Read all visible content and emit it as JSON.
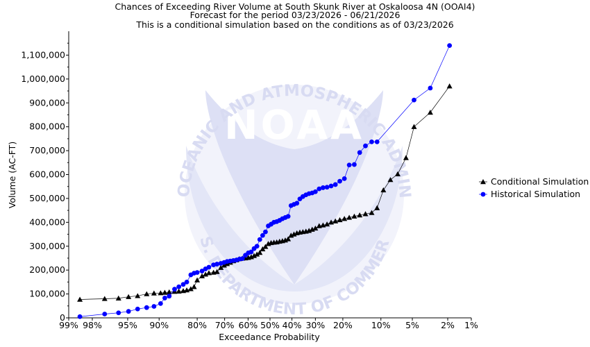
{
  "chart_data": {
    "type": "scatter",
    "title": "Chances of Exceeding River Volume at South Skunk River at Oskaloosa 4N (OOAI4)",
    "subtitle_lines": [
      "Forecast for the period 03/23/2026 - 06/21/2026",
      "This is a conditional simulation based on the conditions as of 03/23/2026"
    ],
    "xlabel": "Exceedance Probability",
    "ylabel": "Volume (AC-FT)",
    "x_axis_scale": "normal-probability",
    "x_axis_direction": "descending",
    "x_ticks": [
      99,
      98,
      95,
      90,
      80,
      70,
      60,
      50,
      40,
      30,
      20,
      10,
      5,
      2,
      1
    ],
    "x_tick_labels": [
      "99%",
      "98%",
      "95%",
      "90%",
      "80%",
      "70%",
      "60%",
      "50%",
      "40%",
      "30%",
      "20%",
      "10%",
      "5%",
      "2%",
      "1%"
    ],
    "y_ticks": [
      0,
      100000,
      200000,
      300000,
      400000,
      500000,
      600000,
      700000,
      800000,
      900000,
      1000000,
      1100000
    ],
    "y_tick_labels": [
      "0",
      "100,000",
      "200,000",
      "300,000",
      "400,000",
      "500,000",
      "600,000",
      "700,000",
      "800,000",
      "900,000",
      "1,000,000",
      "1,100,000"
    ],
    "ylim": [
      0,
      1200000
    ],
    "grid": false,
    "legend_position": "right",
    "watermark_text": [
      "NATIONAL OCEANIC AND ATMOSPHERIC ADMINISTRATION",
      "NOAA",
      "U.S. DEPARTMENT OF COMMERCE"
    ],
    "series": [
      {
        "name": "Conditional Simulation",
        "marker": "triangle",
        "color": "#000000",
        "points": [
          [
            98.6,
            77000
          ],
          [
            97.2,
            80000
          ],
          [
            96.0,
            82000
          ],
          [
            94.9,
            88000
          ],
          [
            93.7,
            92000
          ],
          [
            92.3,
            100000
          ],
          [
            91.0,
            103000
          ],
          [
            89.7,
            104000
          ],
          [
            88.8,
            106000
          ],
          [
            87.8,
            108000
          ],
          [
            86.5,
            110000
          ],
          [
            85.4,
            111000
          ],
          [
            84.2,
            113000
          ],
          [
            83.2,
            116000
          ],
          [
            82.0,
            121000
          ],
          [
            81.0,
            130000
          ],
          [
            80.0,
            158000
          ],
          [
            78.4,
            175000
          ],
          [
            77.2,
            182000
          ],
          [
            76.0,
            188000
          ],
          [
            74.3,
            190000
          ],
          [
            73.0,
            193000
          ],
          [
            71.5,
            210000
          ],
          [
            70.2,
            220000
          ],
          [
            69.0,
            226000
          ],
          [
            67.7,
            232000
          ],
          [
            66.4,
            238000
          ],
          [
            65.1,
            242000
          ],
          [
            63.8,
            247000
          ],
          [
            62.5,
            249000
          ],
          [
            61.2,
            250000
          ],
          [
            59.9,
            252000
          ],
          [
            58.6,
            255000
          ],
          [
            57.3,
            260000
          ],
          [
            56.0,
            266000
          ],
          [
            54.7,
            273000
          ],
          [
            53.4,
            288000
          ],
          [
            52.1,
            298000
          ],
          [
            50.8,
            310000
          ],
          [
            49.5,
            314000
          ],
          [
            48.2,
            316000
          ],
          [
            46.9,
            317000
          ],
          [
            45.6,
            320000
          ],
          [
            44.3,
            322000
          ],
          [
            43.0,
            325000
          ],
          [
            41.7,
            330000
          ],
          [
            40.4,
            345000
          ],
          [
            39.1,
            350000
          ],
          [
            37.8,
            355000
          ],
          [
            36.5,
            358000
          ],
          [
            35.2,
            360000
          ],
          [
            33.9,
            362000
          ],
          [
            32.6,
            365000
          ],
          [
            31.3,
            370000
          ],
          [
            30.0,
            375000
          ],
          [
            28.5,
            385000
          ],
          [
            27.0,
            388000
          ],
          [
            25.5,
            392000
          ],
          [
            24.0,
            400000
          ],
          [
            22.5,
            405000
          ],
          [
            21.0,
            410000
          ],
          [
            19.5,
            415000
          ],
          [
            18.0,
            420000
          ],
          [
            16.5,
            425000
          ],
          [
            15.0,
            430000
          ],
          [
            13.5,
            435000
          ],
          [
            12.0,
            440000
          ],
          [
            10.8,
            460000
          ],
          [
            9.5,
            535000
          ],
          [
            8.2,
            578000
          ],
          [
            7.0,
            602000
          ],
          [
            5.8,
            670000
          ],
          [
            4.8,
            800000
          ],
          [
            3.2,
            860000
          ],
          [
            1.9,
            970000
          ]
        ]
      },
      {
        "name": "Historical Simulation",
        "marker": "circle",
        "color": "#0000ff",
        "points": [
          [
            98.6,
            5000
          ],
          [
            97.2,
            16000
          ],
          [
            96.0,
            21000
          ],
          [
            94.9,
            27000
          ],
          [
            93.7,
            37000
          ],
          [
            92.3,
            43000
          ],
          [
            91.0,
            48000
          ],
          [
            89.7,
            60000
          ],
          [
            88.8,
            83000
          ],
          [
            87.8,
            91000
          ],
          [
            86.5,
            120000
          ],
          [
            85.4,
            130000
          ],
          [
            84.2,
            140000
          ],
          [
            83.2,
            150000
          ],
          [
            82.0,
            180000
          ],
          [
            81.0,
            187000
          ],
          [
            80.0,
            190000
          ],
          [
            78.4,
            196000
          ],
          [
            77.2,
            205000
          ],
          [
            76.0,
            212000
          ],
          [
            74.3,
            222000
          ],
          [
            73.0,
            225000
          ],
          [
            71.5,
            228000
          ],
          [
            70.2,
            232000
          ],
          [
            69.0,
            236000
          ],
          [
            67.7,
            238000
          ],
          [
            66.4,
            240000
          ],
          [
            65.1,
            242000
          ],
          [
            63.8,
            246000
          ],
          [
            62.5,
            248000
          ],
          [
            61.2,
            262000
          ],
          [
            59.9,
            272000
          ],
          [
            58.6,
            276000
          ],
          [
            57.3,
            290000
          ],
          [
            56.0,
            300000
          ],
          [
            54.7,
            328000
          ],
          [
            53.4,
            345000
          ],
          [
            52.1,
            360000
          ],
          [
            50.8,
            385000
          ],
          [
            49.5,
            392000
          ],
          [
            48.2,
            400000
          ],
          [
            46.9,
            403000
          ],
          [
            45.6,
            408000
          ],
          [
            44.3,
            415000
          ],
          [
            43.0,
            420000
          ],
          [
            41.7,
            425000
          ],
          [
            40.4,
            470000
          ],
          [
            39.1,
            475000
          ],
          [
            37.8,
            480000
          ],
          [
            36.5,
            498000
          ],
          [
            35.2,
            508000
          ],
          [
            33.9,
            515000
          ],
          [
            32.6,
            520000
          ],
          [
            31.3,
            523000
          ],
          [
            30.0,
            528000
          ],
          [
            28.5,
            540000
          ],
          [
            27.0,
            545000
          ],
          [
            25.5,
            547000
          ],
          [
            24.0,
            552000
          ],
          [
            22.5,
            558000
          ],
          [
            21.0,
            572000
          ],
          [
            19.5,
            583000
          ],
          [
            18.0,
            640000
          ],
          [
            16.5,
            642000
          ],
          [
            15.0,
            692000
          ],
          [
            13.5,
            720000
          ],
          [
            12.0,
            737000
          ],
          [
            10.8,
            737000
          ],
          [
            4.8,
            912000
          ],
          [
            3.2,
            962000
          ],
          [
            1.9,
            1140000
          ]
        ]
      }
    ]
  }
}
